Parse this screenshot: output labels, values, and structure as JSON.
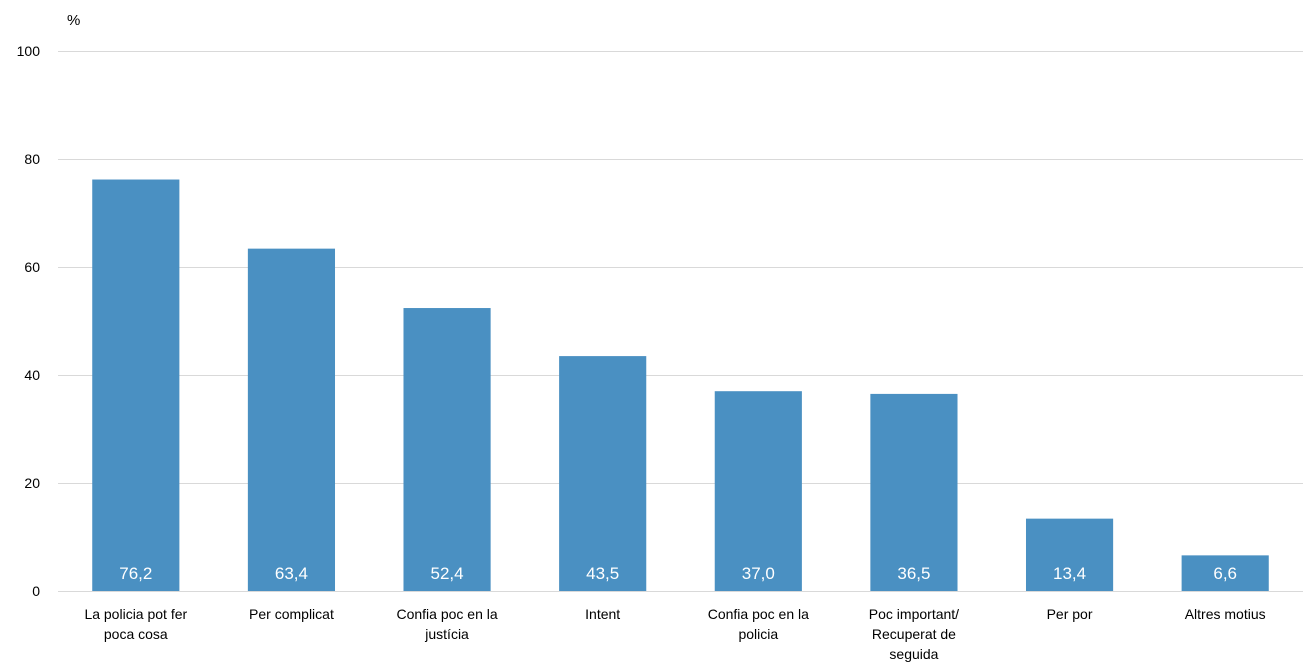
{
  "chart_data": {
    "type": "bar",
    "title": "",
    "ylabel": "%",
    "xlabel": "",
    "ylim": [
      0,
      100
    ],
    "yticks": [
      0,
      20,
      40,
      60,
      80,
      100
    ],
    "grid": true,
    "legend": "none",
    "bar_color": "#4a90c2",
    "categories": [
      [
        "La policia pot fer",
        "poca cosa"
      ],
      [
        "Per complicat"
      ],
      [
        "Confia poc en la",
        "justícia"
      ],
      [
        "Intent"
      ],
      [
        "Confia poc en la",
        "policia"
      ],
      [
        "Poc important/",
        "Recuperat de",
        "seguida"
      ],
      [
        "Per por"
      ],
      [
        "Altres motius"
      ]
    ],
    "values": [
      76.2,
      63.4,
      52.4,
      43.5,
      37.0,
      36.5,
      13.4,
      6.6
    ],
    "value_labels": [
      "76,2",
      "63,4",
      "52,4",
      "43,5",
      "37,0",
      "36,5",
      "13,4",
      "6,6"
    ]
  }
}
